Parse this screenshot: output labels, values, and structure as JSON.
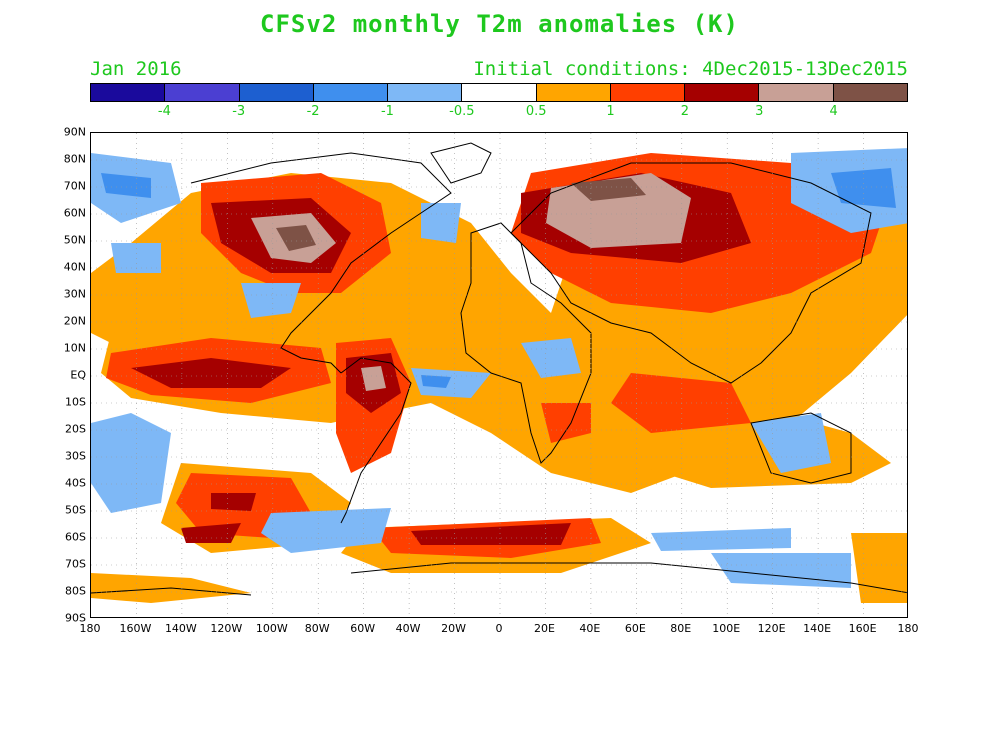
{
  "title": "CFSv2 monthly T2m anomalies (K)",
  "valid_month": "Jan 2016",
  "initial_conditions": "Initial conditions: 4Dec2015-13Dec2015",
  "colorbar": {
    "colors": [
      "#1a0a9c",
      "#4b3fd2",
      "#1d5fd0",
      "#3f8fee",
      "#7eb8f6",
      "#ffffff",
      "#ffa500",
      "#ff3f00",
      "#a50000",
      "#c8a096",
      "#7e5246"
    ],
    "labels": [
      "-4",
      "-3",
      "-2",
      "-1",
      "-0.5",
      "0.5",
      "1",
      "2",
      "3",
      "4"
    ]
  },
  "axes": {
    "lat_labels": [
      "90N",
      "80N",
      "70N",
      "60N",
      "50N",
      "40N",
      "30N",
      "20N",
      "10N",
      "EQ",
      "10S",
      "20S",
      "30S",
      "40S",
      "50S",
      "60S",
      "70S",
      "80S",
      "90S"
    ],
    "lon_labels": [
      "180",
      "160W",
      "140W",
      "120W",
      "100W",
      "80W",
      "60W",
      "40W",
      "20W",
      "0",
      "20E",
      "40E",
      "60E",
      "80E",
      "100E",
      "120E",
      "140E",
      "160E",
      "180"
    ]
  }
}
